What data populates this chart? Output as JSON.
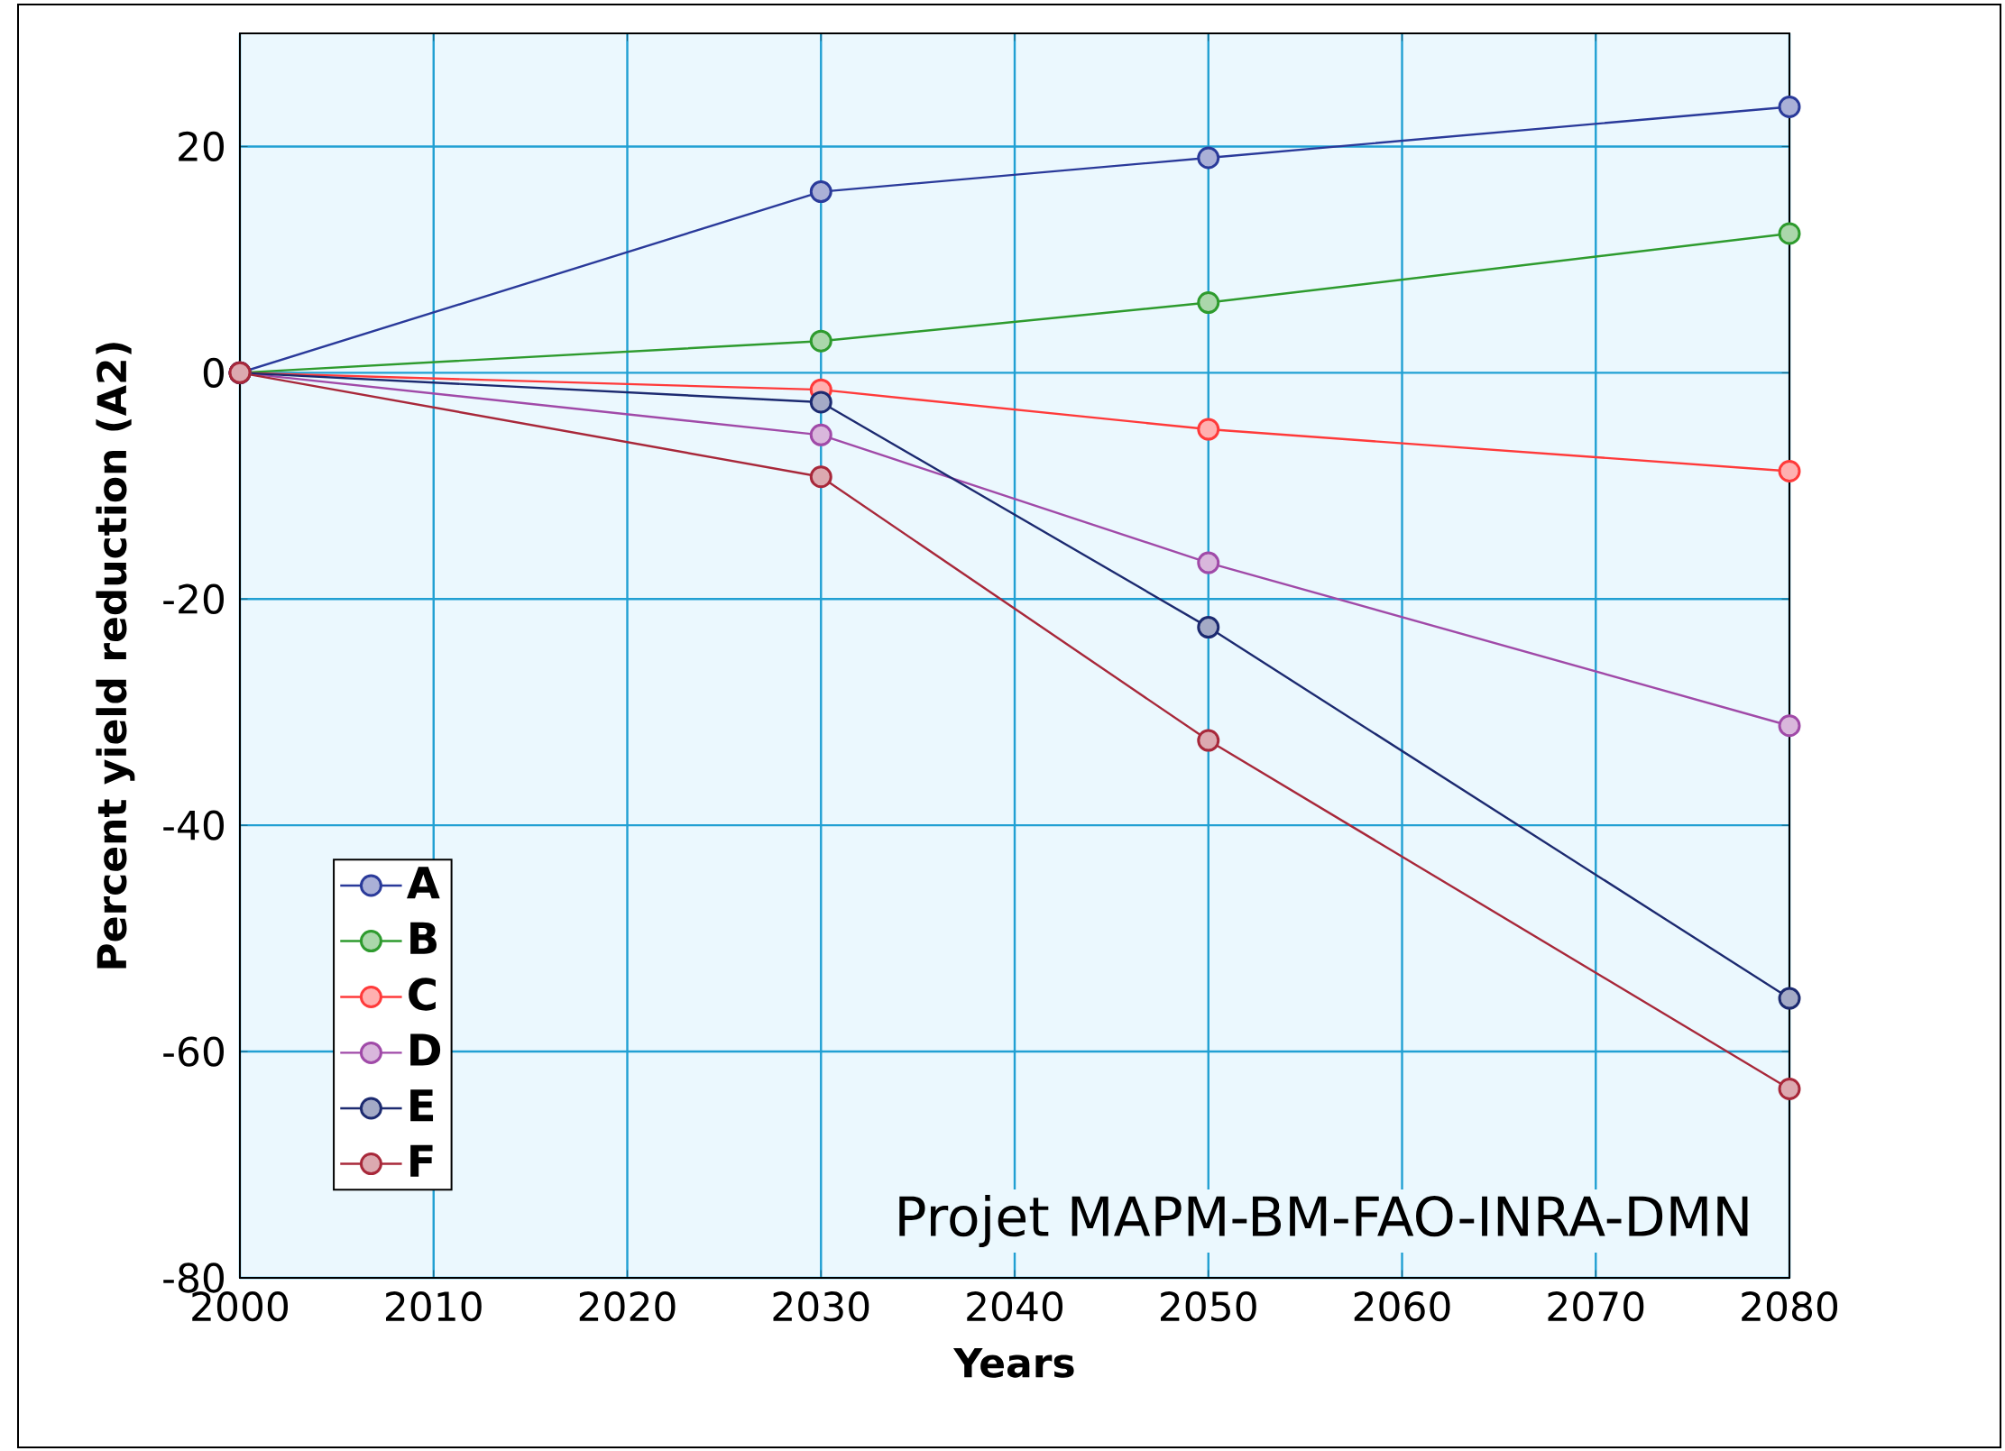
{
  "chart_data": {
    "type": "line",
    "xlabel": "Years",
    "ylabel": "Percent yield reduction (A2)",
    "x": [
      2000,
      2030,
      2050,
      2080
    ],
    "series": [
      {
        "name": "A",
        "color": "#2a3a9a",
        "values": [
          0,
          16,
          19,
          23.5
        ]
      },
      {
        "name": "B",
        "color": "#2e9b2e",
        "values": [
          0,
          2.8,
          6.2,
          12.3
        ]
      },
      {
        "name": "C",
        "color": "#ff3a3a",
        "values": [
          0,
          -1.5,
          -5,
          -8.7
        ]
      },
      {
        "name": "D",
        "color": "#a04aa8",
        "values": [
          0,
          -5.5,
          -16.8,
          -31.2
        ]
      },
      {
        "name": "E",
        "color": "#1c2a70",
        "values": [
          0,
          -2.6,
          -22.5,
          -55.3
        ]
      },
      {
        "name": "F",
        "color": "#a8283a",
        "values": [
          0,
          -9.2,
          -32.5,
          -63.3
        ]
      }
    ],
    "xlim": [
      2000,
      2080
    ],
    "xticks": [
      2000,
      2010,
      2020,
      2030,
      2040,
      2050,
      2060,
      2070,
      2080
    ],
    "ylim": [
      -80,
      30
    ],
    "yticks": [
      -80,
      -60,
      -40,
      -20,
      0,
      20
    ],
    "grid": true,
    "legend": "bottom left",
    "marker": "circle",
    "line_style": "solid",
    "annotations": [
      "Projet  MAPM-BM-FAO-INRA-DMN"
    ]
  }
}
